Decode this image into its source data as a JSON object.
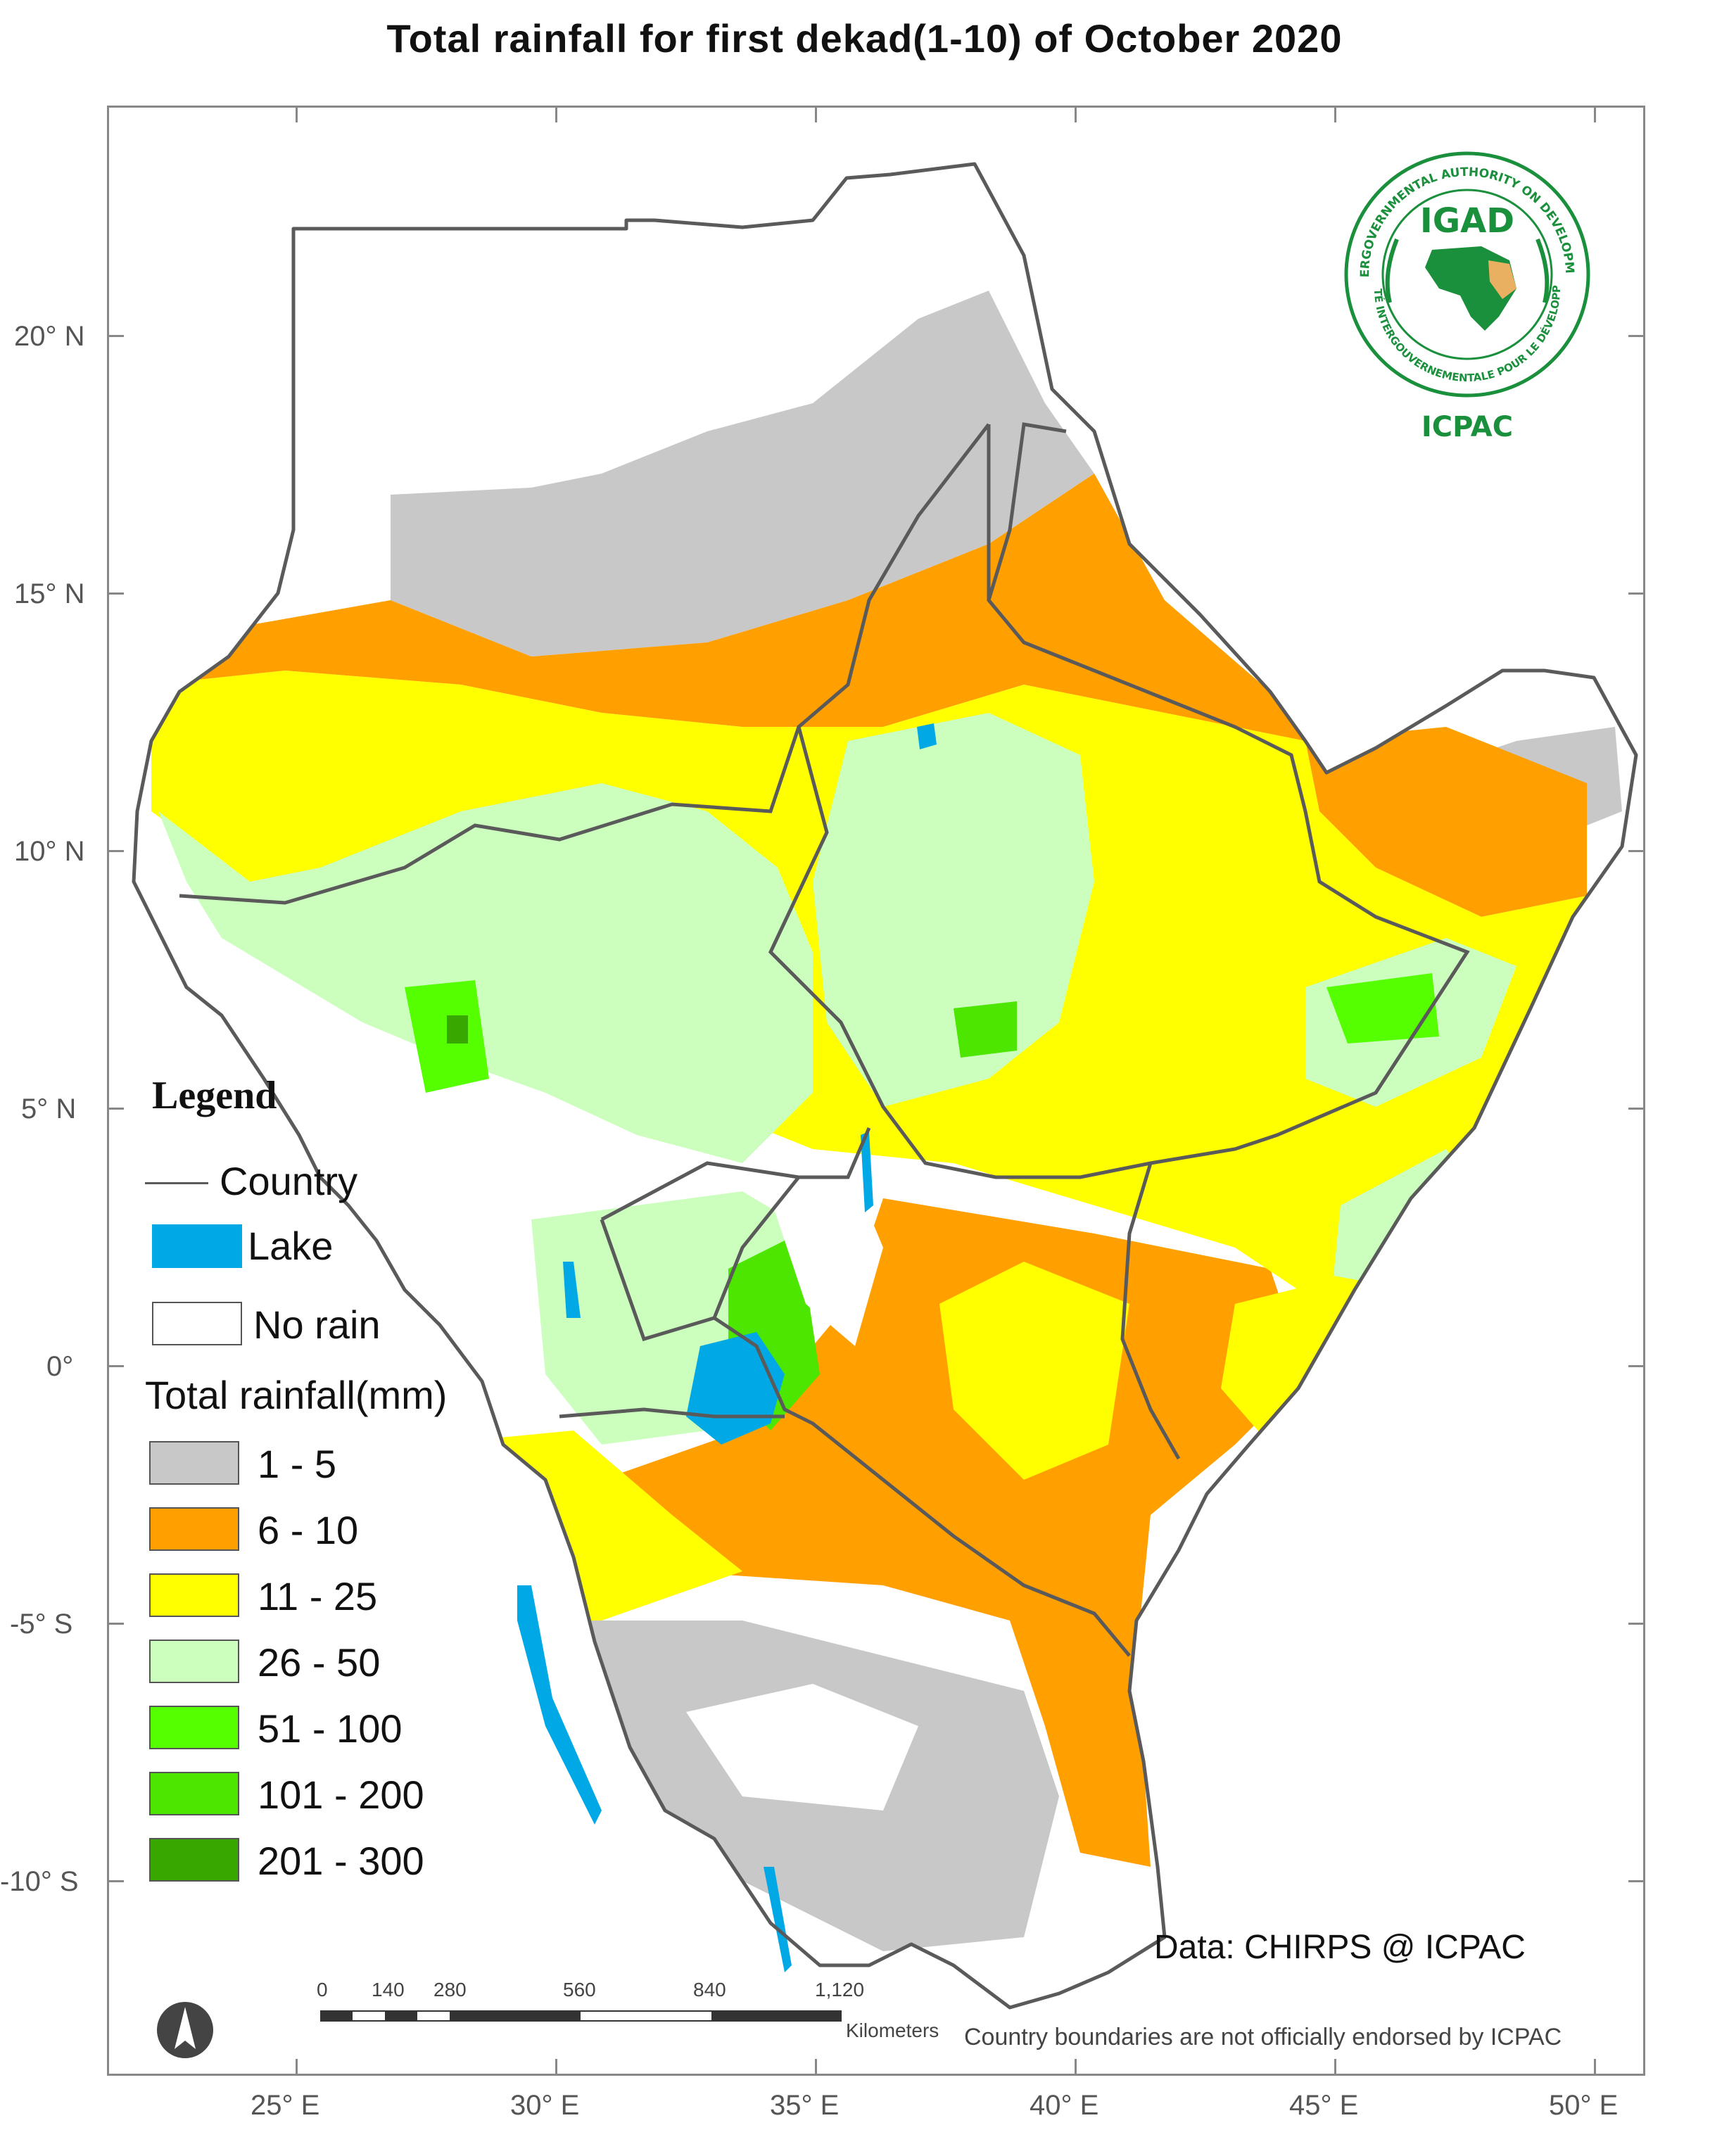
{
  "title": "Total rainfall for  first dekad(1-10)  of October 2020",
  "axes": {
    "x_ticks": [
      "25° E",
      "30° E",
      "35° E",
      "40° E",
      "45° E",
      "50° E"
    ],
    "y_ticks": [
      "20° N",
      "15° N",
      "10° N",
      "5° N",
      "0°",
      "-5° S",
      "-10° S"
    ]
  },
  "legend": {
    "title": "Legend",
    "country_label": "Country",
    "lake_label": "Lake",
    "norain_label": "No rain",
    "rainfall_title": "Total rainfall(mm)",
    "classes": [
      {
        "label": "1 - 5",
        "color": "#c8c8c8"
      },
      {
        "label": "6 - 10",
        "color": "#ff9f00"
      },
      {
        "label": "11 - 25",
        "color": "#ffff00"
      },
      {
        "label": "26 - 50",
        "color": "#ccffbe"
      },
      {
        "label": "51 - 100",
        "color": "#55ff00"
      },
      {
        "label": "101 - 200",
        "color": "#4ce600"
      },
      {
        "label": "201 - 300",
        "color": "#38a800"
      }
    ],
    "lake_color": "#00a9e6",
    "norain_color": "#ffffff",
    "country_color": "#5a5a5a"
  },
  "logo": {
    "org": "IGAD",
    "ring_top": "INTERGOVERNMENTAL AUTHORITY ON DEVELOPMENT",
    "ring_bottom": "AUTORITÉ INTERGOUVERNEMENTALE POUR LE DÉVELOPPEMENT",
    "sub": "ICPAC"
  },
  "credit": "Data: CHIRPS @ ICPAC",
  "disclaimer": "Country boundaries are not officially endorsed by ICPAC",
  "scale": {
    "labels": [
      "0",
      "140",
      "280",
      "560",
      "840",
      "1,120"
    ],
    "unit": "Kilometers"
  },
  "north_arrow": "north-arrow-icon"
}
